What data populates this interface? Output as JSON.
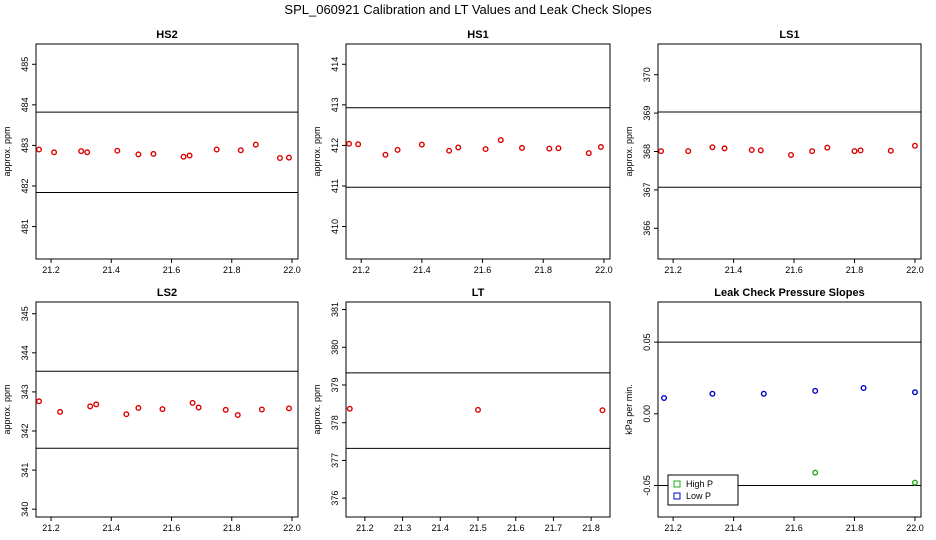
{
  "figure_title": "SPL_060921  Calibration and LT Values and Leak Check Slopes",
  "colors": {
    "points": "#dd0000",
    "high_p": "#22aa22",
    "low_p": "#0000cc",
    "axis": "#000000"
  },
  "chart_data": [
    {
      "type": "scatter",
      "title": "HS2",
      "ylabel": "approx. ppm",
      "xlim": [
        21.15,
        22.02
      ],
      "ylim": [
        480.2,
        485.5
      ],
      "xticks": [
        "21.2",
        "21.4",
        "21.6",
        "21.8",
        "22.0"
      ],
      "yticks": [
        "481",
        "482",
        "483",
        "484",
        "485"
      ],
      "hlines": [
        483.82,
        481.84
      ],
      "series": [
        {
          "x": [
            21.16,
            21.21,
            21.3,
            21.32,
            21.42,
            21.49,
            21.54,
            21.64,
            21.66,
            21.75,
            21.83,
            21.88,
            21.96,
            21.99
          ],
          "y": [
            482.9,
            482.83,
            482.86,
            482.83,
            482.87,
            482.78,
            482.79,
            482.72,
            482.75,
            482.9,
            482.88,
            483.02,
            482.69,
            482.7
          ]
        }
      ]
    },
    {
      "type": "scatter",
      "title": "HS1",
      "ylabel": "approx. ppm",
      "xlim": [
        21.15,
        22.02
      ],
      "ylim": [
        409.2,
        414.5
      ],
      "xticks": [
        "21.2",
        "21.4",
        "21.6",
        "21.8",
        "22.0"
      ],
      "yticks": [
        "410",
        "411",
        "412",
        "413",
        "414"
      ],
      "hlines": [
        412.93,
        410.97
      ],
      "series": [
        {
          "x": [
            21.16,
            21.19,
            21.28,
            21.32,
            21.4,
            21.49,
            21.52,
            21.61,
            21.66,
            21.73,
            21.82,
            21.85,
            21.95,
            21.99
          ],
          "y": [
            412.04,
            412.03,
            411.77,
            411.89,
            412.02,
            411.87,
            411.95,
            411.91,
            412.13,
            411.94,
            411.92,
            411.93,
            411.81,
            411.96
          ]
        }
      ]
    },
    {
      "type": "scatter",
      "title": "LS1",
      "ylabel": "approx. ppm",
      "xlim": [
        21.15,
        22.02
      ],
      "ylim": [
        365.2,
        370.8
      ],
      "xticks": [
        "21.2",
        "21.4",
        "21.6",
        "21.8",
        "22.0"
      ],
      "yticks": [
        "366",
        "367",
        "368",
        "369",
        "370"
      ],
      "hlines": [
        369.03,
        367.07
      ],
      "series": [
        {
          "x": [
            21.16,
            21.25,
            21.33,
            21.37,
            21.46,
            21.49,
            21.59,
            21.66,
            21.71,
            21.8,
            21.82,
            21.92,
            22.0
          ],
          "y": [
            368.01,
            368.01,
            368.11,
            368.08,
            368.04,
            368.03,
            367.91,
            368.01,
            368.1,
            368.01,
            368.03,
            368.02,
            368.15
          ]
        }
      ]
    },
    {
      "type": "scatter",
      "title": "LS2",
      "ylabel": "approx. ppm",
      "xlim": [
        21.15,
        22.02
      ],
      "ylim": [
        339.8,
        345.3
      ],
      "xticks": [
        "21.2",
        "21.4",
        "21.6",
        "21.8",
        "22.0"
      ],
      "yticks": [
        "340",
        "341",
        "342",
        "343",
        "344",
        "345"
      ],
      "hlines": [
        343.53,
        341.56
      ],
      "series": [
        {
          "x": [
            21.16,
            21.23,
            21.33,
            21.35,
            21.45,
            21.49,
            21.57,
            21.67,
            21.69,
            21.78,
            21.82,
            21.9,
            21.99
          ],
          "y": [
            342.76,
            342.49,
            342.63,
            342.68,
            342.43,
            342.59,
            342.56,
            342.72,
            342.6,
            342.54,
            342.41,
            342.55,
            342.58
          ]
        }
      ]
    },
    {
      "type": "scatter",
      "title": "LT",
      "ylabel": "approx. ppm",
      "xlim": [
        21.15,
        21.85
      ],
      "ylim": [
        375.5,
        381.2
      ],
      "xticks": [
        "21.2",
        "21.3",
        "21.4",
        "21.5",
        "21.6",
        "21.7",
        "21.8"
      ],
      "yticks": [
        "376",
        "377",
        "378",
        "379",
        "380",
        "381"
      ],
      "hlines": [
        379.32,
        377.32
      ],
      "series": [
        {
          "x": [
            21.16,
            21.5,
            21.83
          ],
          "y": [
            378.37,
            378.34,
            378.33
          ]
        }
      ]
    },
    {
      "type": "scatter",
      "title": "Leak Check Pressure Slopes",
      "ylabel": "kPa per min.",
      "xlim": [
        21.15,
        22.02
      ],
      "ylim": [
        -0.072,
        0.078
      ],
      "xticks": [
        "21.2",
        "21.4",
        "21.6",
        "21.8",
        "22.0"
      ],
      "yticks": [
        "-0.05",
        "0.00",
        "0.05"
      ],
      "hlines": [
        0.05,
        -0.05
      ],
      "legend": {
        "position": "bottom-left",
        "entries": [
          "High P",
          "Low P"
        ]
      },
      "series": [
        {
          "name": "High P",
          "x": [
            21.33,
            21.67,
            22.0
          ],
          "y": [
            -0.056,
            -0.041,
            -0.048
          ]
        },
        {
          "name": "Low P",
          "x": [
            21.17,
            21.33,
            21.5,
            21.67,
            21.83,
            22.0
          ],
          "y": [
            0.011,
            0.014,
            0.014,
            0.016,
            0.018,
            0.015
          ]
        }
      ]
    }
  ]
}
